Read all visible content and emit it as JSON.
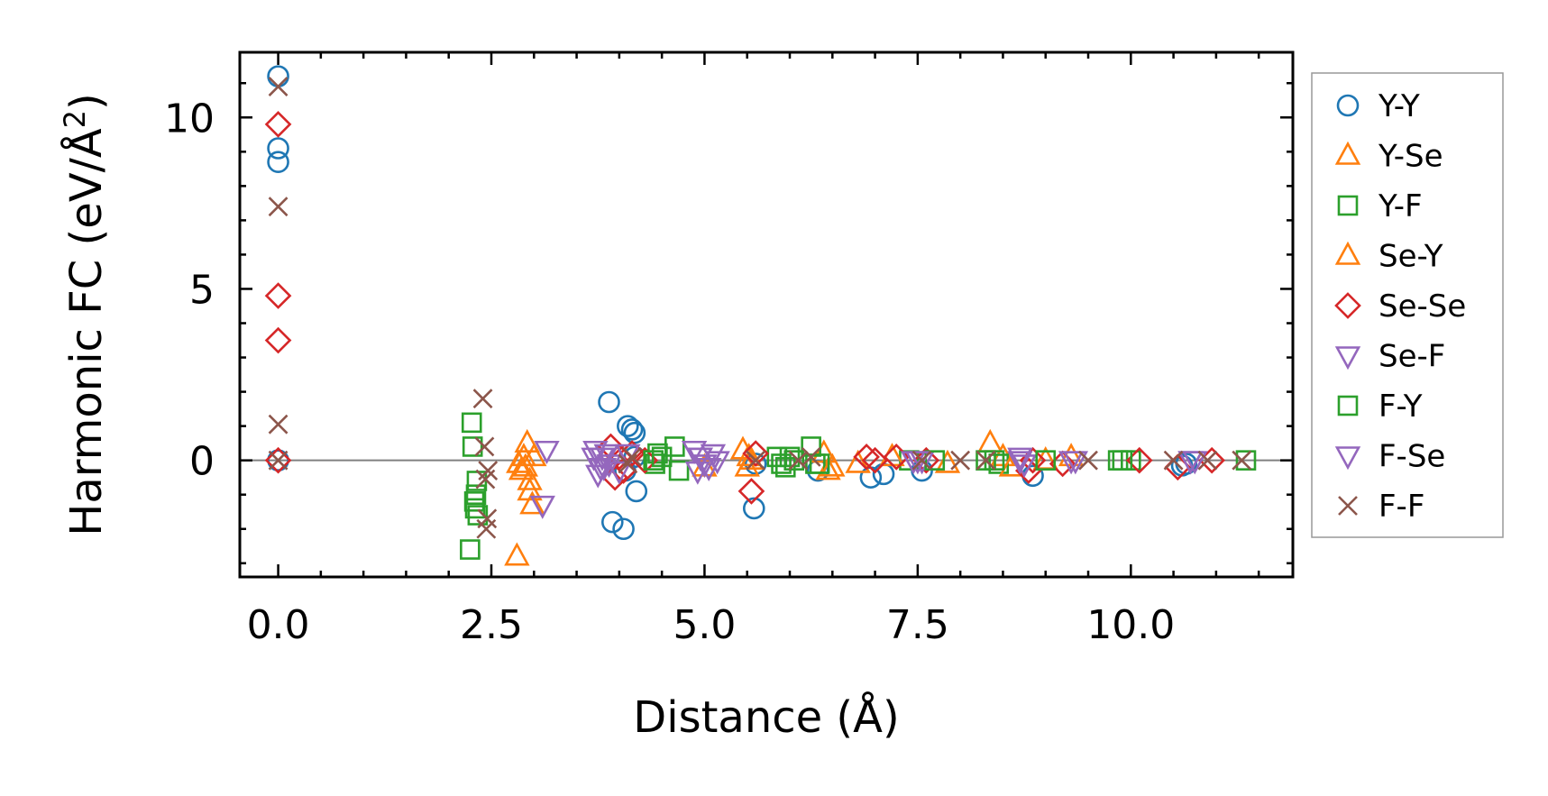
{
  "chart_data": {
    "type": "scatter",
    "title": "",
    "xlabel": "Distance (Å)",
    "ylabel_main": "Harmonic FC (eV/Å",
    "ylabel_sup": "2",
    "ylabel_close": ")",
    "xlim": [
      -0.45,
      11.9
    ],
    "ylim": [
      -3.4,
      11.9
    ],
    "xticks": [
      0,
      2.5,
      5,
      7.5,
      10
    ],
    "xtick_labels": [
      "0.0",
      "2.5",
      "5.0",
      "7.5",
      "10.0"
    ],
    "xminor_step": 0.5,
    "yticks": [
      0,
      5,
      10
    ],
    "ytick_labels": [
      "0",
      "5",
      "10"
    ],
    "yminor_step": 1,
    "zero_line": 0,
    "legend_position": "outside-right",
    "series": [
      {
        "name": "Y-Y",
        "marker": "circle",
        "color": "#1f77b4",
        "x": [
          0,
          0,
          0,
          0,
          3.88,
          3.92,
          4.05,
          4.1,
          4.15,
          4.18,
          4.2,
          4.07,
          4.18,
          5.58,
          5.6,
          6.33,
          6.95,
          7.1,
          7.55,
          8.85,
          10.6,
          10.65
        ],
        "y": [
          11.2,
          9.1,
          8.7,
          0.0,
          1.7,
          -1.8,
          -2.0,
          1.0,
          0.9,
          0.8,
          -0.9,
          -0.3,
          0.1,
          -1.4,
          -0.1,
          -0.3,
          -0.5,
          -0.4,
          -0.3,
          -0.45,
          -0.15,
          -0.1
        ]
      },
      {
        "name": "Y-Se",
        "marker": "triangle-up",
        "color": "#ff7f0e",
        "x": [
          2.8,
          2.82,
          2.85,
          2.88,
          2.9,
          2.92,
          2.95,
          2.95,
          2.98,
          3.0,
          5.45,
          5.5,
          5.52,
          6.4,
          6.45,
          7.85,
          8.35,
          8.5,
          9.3
        ],
        "y": [
          -2.8,
          -0.1,
          -0.3,
          0.1,
          -0.2,
          0.5,
          -0.6,
          -0.9,
          -1.3,
          0.1,
          0.3,
          -0.2,
          0.1,
          0.2,
          -0.3,
          -0.1,
          0.5,
          0.1,
          0.1
        ]
      },
      {
        "name": "Y-F",
        "marker": "square",
        "color": "#2ca02c",
        "x": [
          2.25,
          2.27,
          2.28,
          2.3,
          2.31,
          2.32,
          2.33,
          2.34,
          4.42,
          4.45,
          4.65,
          4.7,
          5.85,
          5.9,
          6.05,
          6.25,
          6.3,
          7.4,
          8.3,
          8.45,
          9.85,
          10.0,
          11.35
        ],
        "y": [
          -2.6,
          1.1,
          0.4,
          -1.2,
          -1.4,
          -1.0,
          -0.6,
          -1.6,
          -0.1,
          0.2,
          0.4,
          -0.3,
          0.1,
          -0.1,
          0.0,
          0.4,
          -0.1,
          0.0,
          0.0,
          -0.1,
          0.0,
          0.0,
          0.0
        ]
      },
      {
        "name": "Se-Y",
        "marker": "triangle-up",
        "color": "#ff7f0e",
        "x": [
          5.0,
          5.55,
          6.5,
          6.8,
          7.2,
          8.6,
          9.0
        ],
        "y": [
          -0.2,
          0.0,
          -0.2,
          -0.1,
          0.1,
          -0.2,
          0.0
        ]
      },
      {
        "name": "Se-Se",
        "marker": "diamond",
        "color": "#d62728",
        "x": [
          0,
          0,
          0,
          0,
          3.9,
          3.95,
          4.0,
          4.05,
          4.15,
          4.3,
          5.55,
          5.6,
          6.9,
          7.0,
          7.25,
          7.6,
          8.8,
          8.85,
          9.2,
          10.1,
          10.55,
          10.95
        ],
        "y": [
          9.8,
          4.8,
          3.5,
          0.0,
          0.4,
          -0.5,
          0.1,
          -0.3,
          0.2,
          0.0,
          -0.9,
          0.2,
          0.1,
          0.0,
          0.1,
          0.0,
          -0.3,
          0.0,
          -0.1,
          0.0,
          -0.2,
          0.0
        ]
      },
      {
        "name": "Se-F",
        "marker": "triangle-down",
        "color": "#9467bd",
        "x": [
          3.1,
          3.15,
          3.72,
          3.75,
          3.8,
          3.82,
          3.85,
          3.88,
          4.0,
          4.1,
          4.88,
          4.92,
          4.95,
          5.0,
          5.1,
          5.15,
          7.45,
          7.55,
          8.7,
          8.75,
          9.3,
          10.7,
          10.75
        ],
        "y": [
          -1.3,
          0.3,
          0.3,
          -0.4,
          0.1,
          -0.2,
          0.2,
          -0.1,
          -0.3,
          0.2,
          0.3,
          -0.3,
          0.1,
          -0.1,
          0.2,
          0.0,
          0.0,
          0.0,
          0.0,
          -0.1,
          0.0,
          0.0,
          0.0
        ]
      },
      {
        "name": "F-Y",
        "marker": "square",
        "color": "#2ca02c",
        "x": [
          4.4,
          4.5,
          5.95,
          6.0,
          6.35,
          7.7,
          8.4,
          9.0,
          9.9
        ],
        "y": [
          0.0,
          0.1,
          -0.2,
          0.1,
          -0.1,
          0.0,
          0.0,
          0.0,
          0.0
        ]
      },
      {
        "name": "F-Se",
        "marker": "triangle-down",
        "color": "#9467bd",
        "x": [
          3.7,
          3.78,
          4.95,
          5.05,
          7.5,
          8.7,
          9.35,
          10.7
        ],
        "y": [
          0.1,
          -0.2,
          0.1,
          -0.2,
          0.0,
          0.1,
          0.0,
          0.0
        ]
      },
      {
        "name": "F-F",
        "marker": "x",
        "color": "#8c564b",
        "x": [
          0,
          0,
          0,
          0,
          2.4,
          2.42,
          2.43,
          2.44,
          2.45,
          2.46,
          4.1,
          4.15,
          5.6,
          6.1,
          6.25,
          7.55,
          8.0,
          8.3,
          9.5,
          10.5,
          10.9,
          11.3
        ],
        "y": [
          10.9,
          7.4,
          1.05,
          0.0,
          1.8,
          0.4,
          -0.55,
          -2.0,
          -1.7,
          -0.3,
          -0.1,
          0.1,
          0.0,
          0.0,
          0.1,
          0.0,
          0.0,
          0.0,
          0.0,
          0.0,
          0.0,
          0.0
        ]
      }
    ],
    "legend_entries": [
      {
        "name": "Y-Y",
        "marker": "circle",
        "color": "#1f77b4"
      },
      {
        "name": "Y-Se",
        "marker": "triangle-up",
        "color": "#ff7f0e"
      },
      {
        "name": "Y-F",
        "marker": "square",
        "color": "#2ca02c"
      },
      {
        "name": "Se-Y",
        "marker": "triangle-up",
        "color": "#ff7f0e"
      },
      {
        "name": "Se-Se",
        "marker": "diamond",
        "color": "#d62728"
      },
      {
        "name": "Se-F",
        "marker": "triangle-down",
        "color": "#9467bd"
      },
      {
        "name": "F-Y",
        "marker": "square",
        "color": "#2ca02c"
      },
      {
        "name": "F-Se",
        "marker": "triangle-down",
        "color": "#9467bd"
      },
      {
        "name": "F-F",
        "marker": "x",
        "color": "#8c564b"
      }
    ]
  }
}
